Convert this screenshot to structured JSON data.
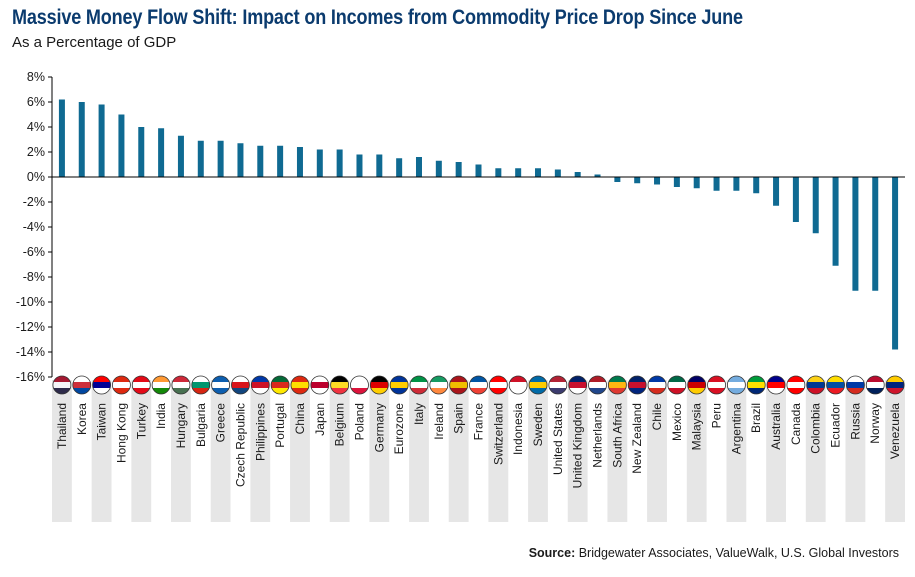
{
  "header": {
    "title": "Massive Money Flow Shift: Impact on Incomes from Commodity Price Drop Since June",
    "subtitle": "As a Percentage of GDP"
  },
  "footer": {
    "source_label": "Source:",
    "source_text": "Bridgewater Associates, ValueWalk, U.S. Global Investors"
  },
  "colors": {
    "bar": "#0f6a92",
    "stripe": "#e6e6e6",
    "axis": "#000000"
  },
  "chart_data": {
    "type": "bar",
    "title": "Massive Money Flow Shift: Impact on Incomes from Commodity Price Drop Since June",
    "subtitle": "As a Percentage of GDP",
    "xlabel": "",
    "ylabel": "",
    "ylim": [
      -16,
      8
    ],
    "yticks": [
      8,
      6,
      4,
      2,
      0,
      -2,
      -4,
      -6,
      -8,
      -10,
      -12,
      -14,
      -16
    ],
    "ytick_labels": [
      "8%",
      "6%",
      "4%",
      "2%",
      "0%",
      "-2%",
      "-4%",
      "-6%",
      "-8%",
      "-10%",
      "-12%",
      "-14%",
      "-16%"
    ],
    "grid": false,
    "categories": [
      "Thailand",
      "Korea",
      "Taiwan",
      "Hong Kong",
      "Turkey",
      "India",
      "Hungary",
      "Bulgaria",
      "Greece",
      "Czech Republic",
      "Philippines",
      "Portugal",
      "China",
      "Japan",
      "Belgium",
      "Poland",
      "Germany",
      "Eurozone",
      "Italy",
      "Ireland",
      "Spain",
      "France",
      "Switzerland",
      "Indonesia",
      "Sweden",
      "United States",
      "United Kingdom",
      "Netherlands",
      "South Africa",
      "New Zealand",
      "Chile",
      "Mexico",
      "Malaysia",
      "Peru",
      "Argentina",
      "Brazil",
      "Australia",
      "Canada",
      "Colombia",
      "Ecuador",
      "Russia",
      "Norway",
      "Venezuela"
    ],
    "values": [
      6.2,
      6.0,
      5.8,
      5.0,
      4.0,
      3.9,
      3.3,
      2.9,
      2.9,
      2.7,
      2.5,
      2.5,
      2.4,
      2.2,
      2.2,
      1.8,
      1.8,
      1.5,
      1.6,
      1.3,
      1.2,
      1.0,
      0.7,
      0.7,
      0.7,
      0.6,
      0.4,
      0.2,
      -0.4,
      -0.5,
      -0.6,
      -0.8,
      -0.9,
      -1.1,
      -1.1,
      -1.3,
      -2.3,
      -3.6,
      -4.5,
      -7.1,
      -9.1,
      -9.1,
      -13.8
    ]
  }
}
